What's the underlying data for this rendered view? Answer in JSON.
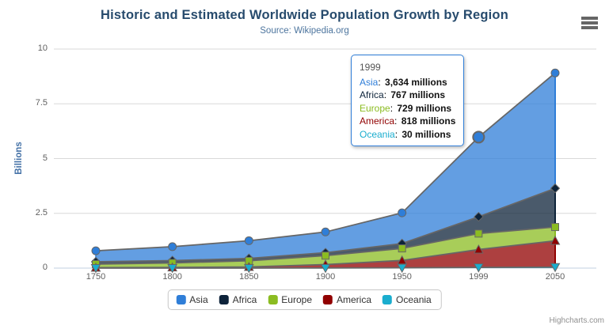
{
  "title": "Historic and Estimated Worldwide Population Growth by Region",
  "subtitle": "Source: Wikipedia.org",
  "credits": "Highcharts.com",
  "chart_data": {
    "type": "area",
    "stacking": "normal",
    "title": "Historic and Estimated Worldwide Population Growth by Region",
    "subtitle": "Source: Wikipedia.org",
    "categories": [
      "1750",
      "1800",
      "1850",
      "1900",
      "1950",
      "1999",
      "2050"
    ],
    "xlabel": "",
    "ylabel": "Billions",
    "ylim": [
      0,
      10
    ],
    "yticks": [
      0,
      2.5,
      5,
      7.5,
      10
    ],
    "unit": "millions",
    "grid": "horizontal",
    "legend_position": "bottom",
    "line_color": "#666666",
    "fill_opacity": 0.75,
    "series": [
      {
        "name": "Asia",
        "color": "#2f7ed8",
        "marker": "circle",
        "values": [
          502,
          635,
          809,
          947,
          1402,
          3634,
          5268
        ]
      },
      {
        "name": "Africa",
        "color": "#0d233a",
        "marker": "diamond",
        "values": [
          106,
          107,
          111,
          133,
          221,
          767,
          1766
        ]
      },
      {
        "name": "Europe",
        "color": "#8bbc21",
        "marker": "square",
        "values": [
          163,
          203,
          276,
          408,
          547,
          729,
          628
        ]
      },
      {
        "name": "America",
        "color": "#910000",
        "marker": "triangle",
        "values": [
          18,
          31,
          54,
          156,
          339,
          818,
          1201
        ]
      },
      {
        "name": "Oceania",
        "color": "#1aadce",
        "marker": "triangle-down",
        "values": [
          2,
          2,
          2,
          6,
          13,
          30,
          46
        ]
      }
    ]
  },
  "tooltip": {
    "header": "1999",
    "border_color": "#2f7ed8",
    "hover_point": {
      "series": "Asia",
      "category": "1999"
    },
    "rows": [
      {
        "label": "Asia",
        "color": "#2f7ed8",
        "value": "3,634 millions"
      },
      {
        "label": "Africa",
        "color": "#0d233a",
        "value": "767 millions"
      },
      {
        "label": "Europe",
        "color": "#8bbc21",
        "value": "729 millions"
      },
      {
        "label": "America",
        "color": "#910000",
        "value": "818 millions"
      },
      {
        "label": "Oceania",
        "color": "#1aadce",
        "value": "30 millions"
      }
    ]
  },
  "legend": {
    "items": [
      "Asia",
      "Africa",
      "Europe",
      "America",
      "Oceania"
    ]
  }
}
